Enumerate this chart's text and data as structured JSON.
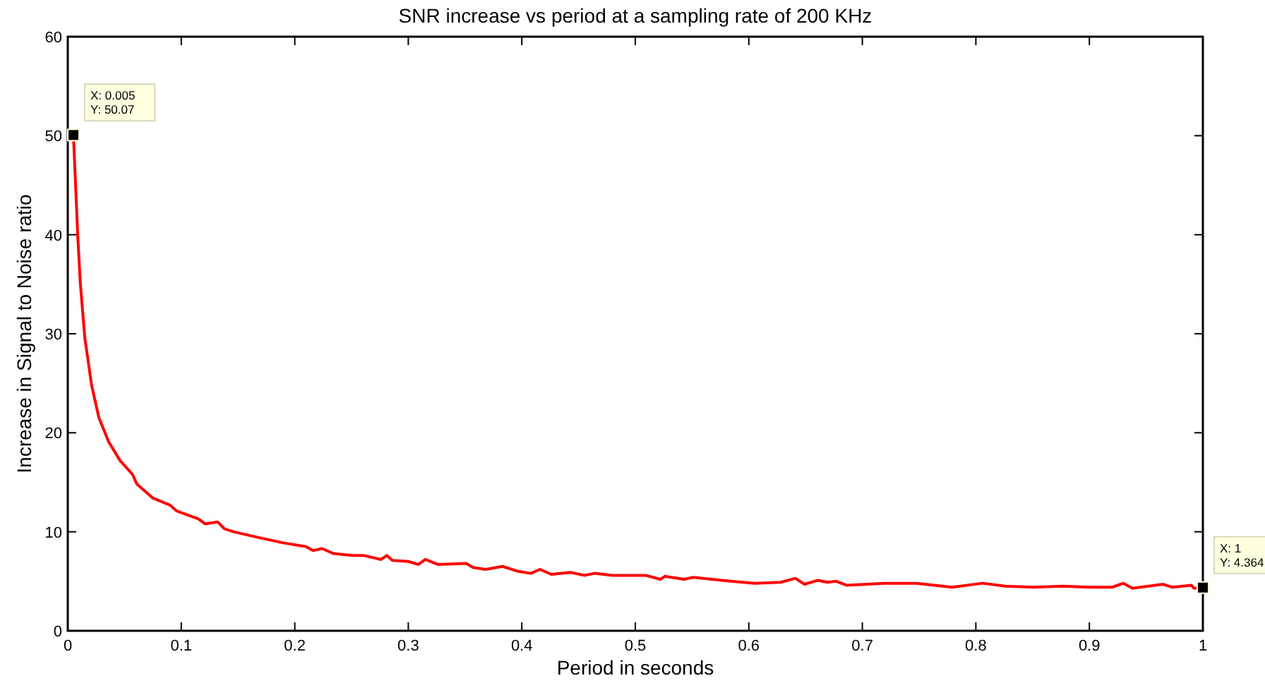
{
  "chart_data": {
    "type": "line",
    "title": "SNR increase vs period at a sampling rate of 200 KHz",
    "xlabel": "Period in seconds",
    "ylabel": "Increase in Signal to Noise ratio",
    "xlim": [
      0,
      1
    ],
    "xticks": [
      0,
      0.1,
      0.2,
      0.3,
      0.4,
      0.5,
      0.6,
      0.7,
      0.8,
      0.9,
      1
    ],
    "ylim": [
      0,
      60
    ],
    "yticks": [
      0,
      10,
      20,
      30,
      40,
      50,
      60
    ],
    "marker": "none",
    "line_style": "solid",
    "series": [
      {
        "color": "#ff0000",
        "x": [
          0.005,
          0.00875,
          0.011,
          0.015,
          0.021,
          0.0275,
          0.036,
          0.046,
          0.057,
          0.061,
          0.075,
          0.09,
          0.096,
          0.115,
          0.121,
          0.132,
          0.138,
          0.146,
          0.169,
          0.189,
          0.21,
          0.216,
          0.224,
          0.234,
          0.251,
          0.261,
          0.276,
          0.281,
          0.286,
          0.3,
          0.309,
          0.315,
          0.326,
          0.351,
          0.357,
          0.368,
          0.383,
          0.397,
          0.408,
          0.416,
          0.426,
          0.443,
          0.455,
          0.464,
          0.48,
          0.509,
          0.522,
          0.526,
          0.543,
          0.551,
          0.576,
          0.605,
          0.628,
          0.641,
          0.649,
          0.661,
          0.669,
          0.677,
          0.686,
          0.719,
          0.748,
          0.779,
          0.806,
          0.826,
          0.851,
          0.876,
          0.901,
          0.92,
          0.93,
          0.938,
          0.965,
          0.973,
          0.99,
          0.992,
          1
        ],
        "values": [
          50.07,
          40.0,
          35.2,
          29.6,
          24.8,
          21.5,
          19.1,
          17.2,
          15.8,
          14.8,
          13.4,
          12.7,
          12.1,
          11.3,
          10.8,
          11.0,
          10.3,
          10.0,
          9.4,
          8.9,
          8.5,
          8.1,
          8.3,
          7.8,
          7.6,
          7.6,
          7.2,
          7.6,
          7.1,
          7.0,
          6.7,
          7.2,
          6.7,
          6.8,
          6.4,
          6.2,
          6.5,
          6.0,
          5.8,
          6.2,
          5.7,
          5.9,
          5.6,
          5.8,
          5.6,
          5.6,
          5.2,
          5.5,
          5.2,
          5.4,
          5.1,
          4.8,
          4.9,
          5.3,
          4.7,
          5.1,
          4.9,
          5.0,
          4.6,
          4.8,
          4.8,
          4.4,
          4.8,
          4.5,
          4.4,
          4.5,
          4.4,
          4.4,
          4.8,
          4.3,
          4.7,
          4.4,
          4.6,
          4.3,
          4.364
        ]
      }
    ],
    "annotations": [
      {
        "text": "X: 0.005\nY: 50.07",
        "x": 0.005,
        "y": 50.07
      },
      {
        "text": "X: 1\nY: 4.364",
        "x": 1,
        "y": 4.364
      }
    ]
  }
}
